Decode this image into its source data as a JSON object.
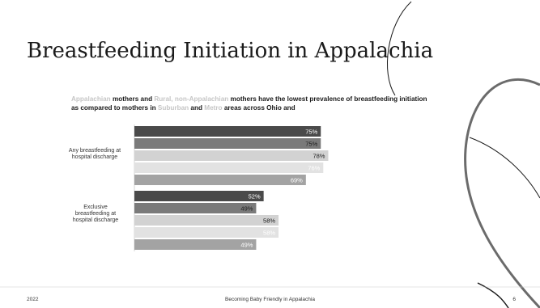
{
  "slide": {
    "title": "Breastfeeding Initiation in Appalachia",
    "footer_year": "2022",
    "footer_center": "Becoming Baby Friendly in Appalachia",
    "page_number": "6"
  },
  "subtitle": {
    "seg1": "Appalachian",
    "seg2": " mothers and ",
    "seg3": "Rural, non-Appalachian",
    "seg4": " mothers have the lowest prevalence of breastfeeding initiation as compared to mothers in ",
    "seg5": "Suburban",
    "seg6": " and ",
    "seg7": "Metro",
    "seg8": " areas across Ohio and"
  },
  "chart_data": {
    "type": "bar",
    "orientation": "horizontal",
    "categories": [
      "Any breastfeeding at hospital discharge",
      "Exclusive breastfeeding at hospital discharge"
    ],
    "values": [
      [
        75,
        75,
        78,
        76,
        69
      ],
      [
        52,
        49,
        58,
        58,
        49
      ]
    ],
    "data_labels": [
      [
        "75%",
        "75%",
        "78%",
        "76%",
        "69%"
      ],
      [
        "52%",
        "49%",
        "58%",
        "58%",
        "49%"
      ]
    ],
    "bar_colors": [
      "#4a4a4a",
      "#7a7a7a",
      "#d2d2d2",
      "#e2e2e2",
      "#a3a3a3"
    ],
    "label_colors": [
      "#ffffff",
      "#1a1a1a",
      "#1a1a1a",
      "#ffffff",
      "#ffffff"
    ],
    "xlim": [
      0,
      100
    ]
  }
}
